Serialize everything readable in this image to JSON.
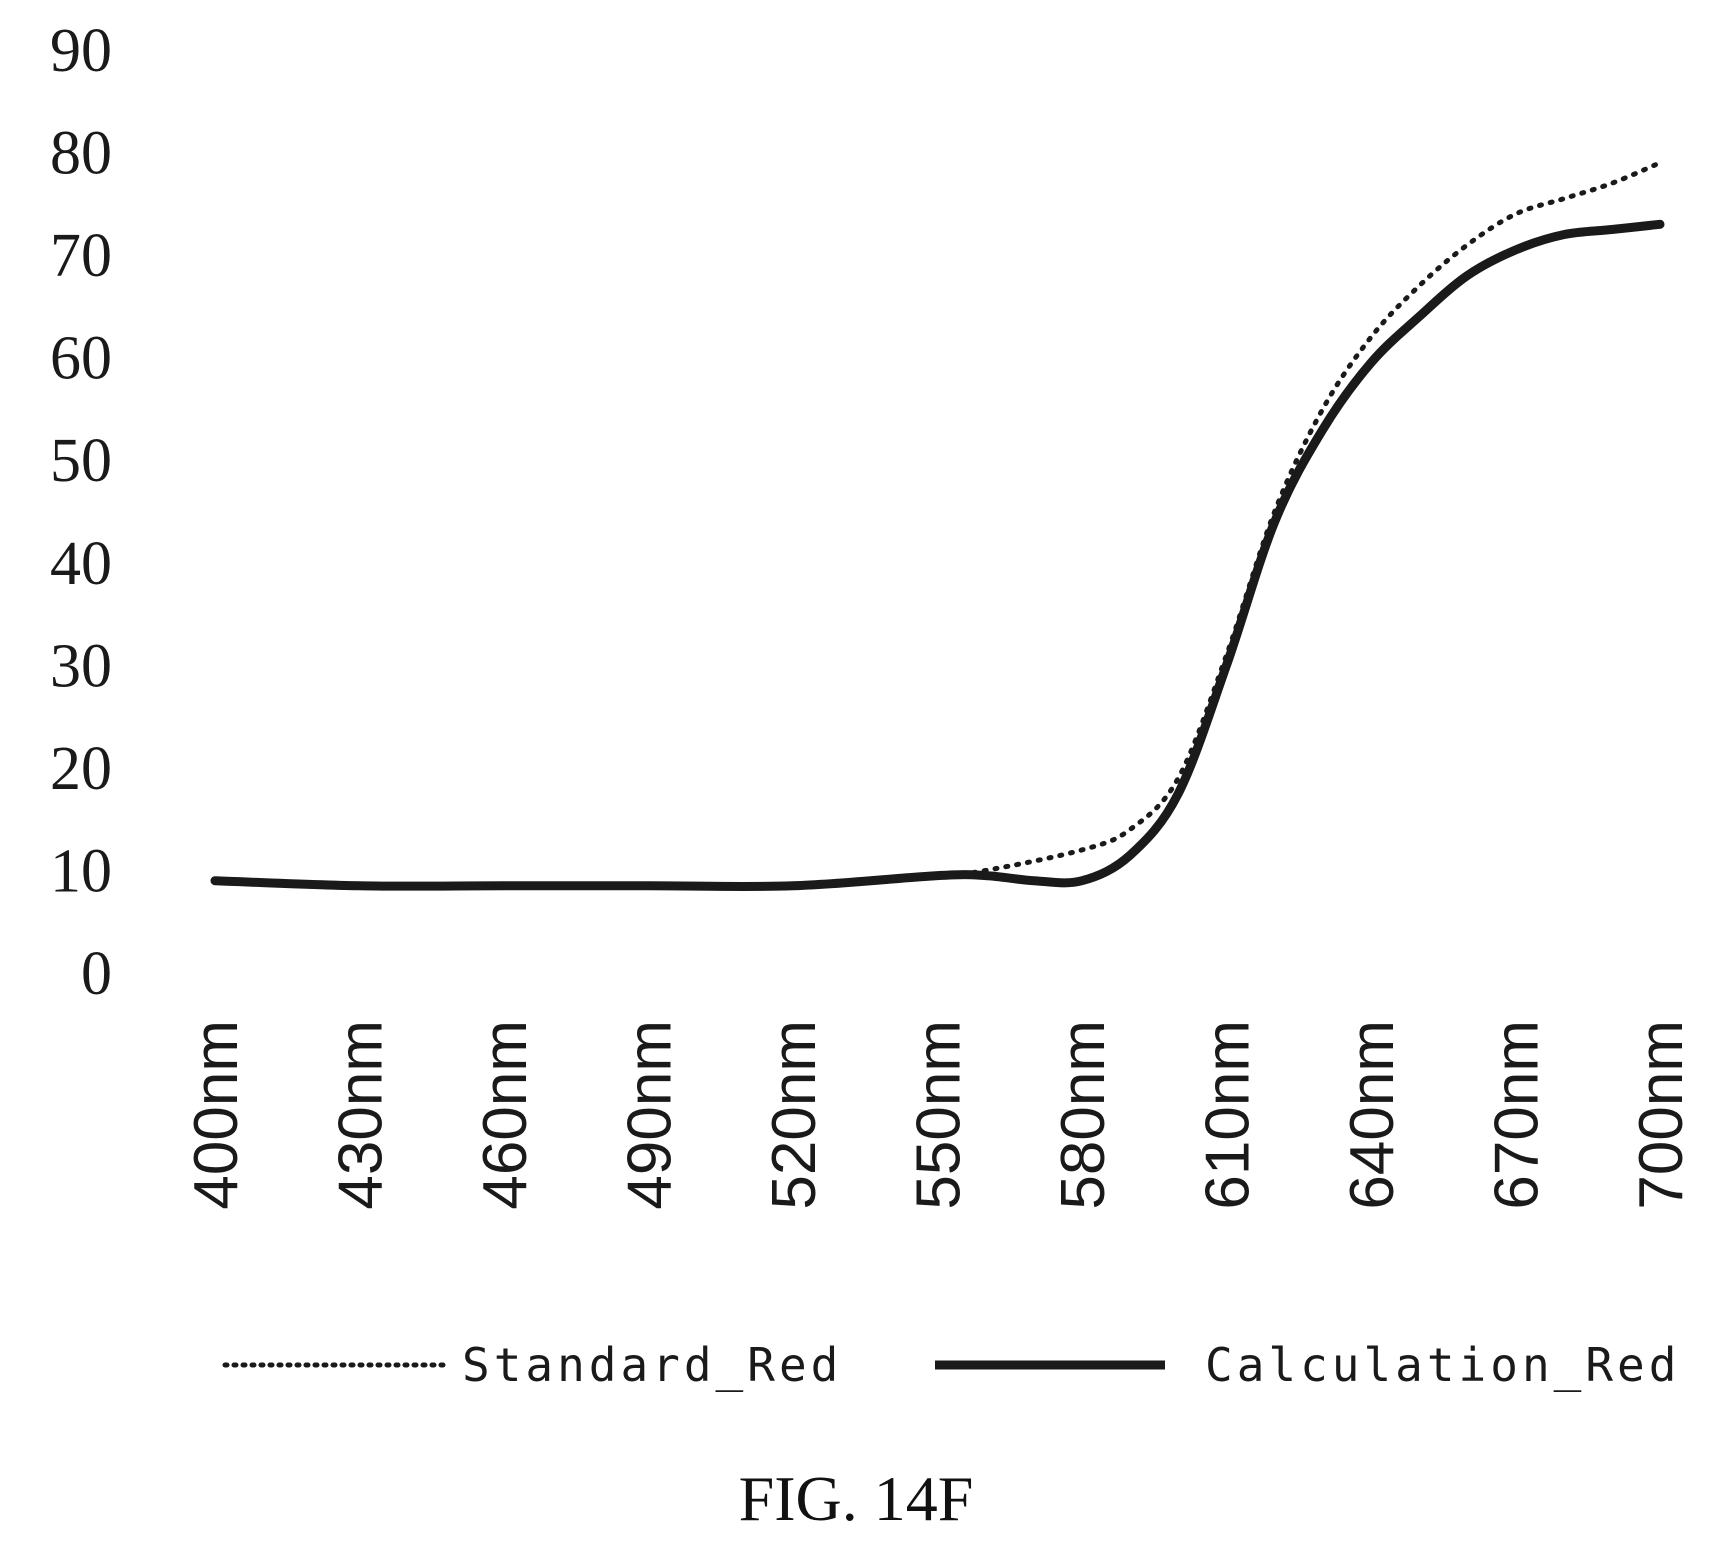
{
  "chart_data": {
    "type": "line",
    "categories": [
      "400nm",
      "430nm",
      "460nm",
      "490nm",
      "520nm",
      "550nm",
      "580nm",
      "610nm",
      "640nm",
      "670nm",
      "700nm"
    ],
    "ylim": [
      0,
      90
    ],
    "yticks": [
      "0",
      "10",
      "20",
      "30",
      "40",
      "50",
      "60",
      "70",
      "80",
      "90"
    ],
    "grid": false,
    "legend_position": "bottom",
    "series": [
      {
        "name": "Standard_Red",
        "style": "dotted",
        "x": [
          400,
          430,
          460,
          490,
          520,
          550,
          560,
          580,
          590,
          600,
          610,
          620,
          630,
          640,
          650,
          660,
          670,
          680,
          690,
          700
        ],
        "values": [
          9,
          8.5,
          8.5,
          8.5,
          8.5,
          9.5,
          10,
          12,
          14,
          19,
          31,
          45,
          55,
          62,
          67,
          71,
          74,
          75.5,
          77,
          79
        ]
      },
      {
        "name": "Calculation_Red",
        "style": "solid",
        "x": [
          400,
          430,
          460,
          490,
          520,
          550,
          560,
          570,
          580,
          590,
          600,
          610,
          620,
          630,
          640,
          650,
          660,
          670,
          680,
          690,
          700
        ],
        "values": [
          9,
          8.5,
          8.5,
          8.5,
          8.5,
          9.5,
          9.5,
          9,
          9,
          11.5,
          17.5,
          30,
          44,
          53,
          59.5,
          64,
          68,
          70.5,
          72,
          72.5,
          73
        ]
      }
    ],
    "colors": {
      "line": "#1a1a1a",
      "background": "#ffffff"
    }
  },
  "caption": "FIG. 14F"
}
